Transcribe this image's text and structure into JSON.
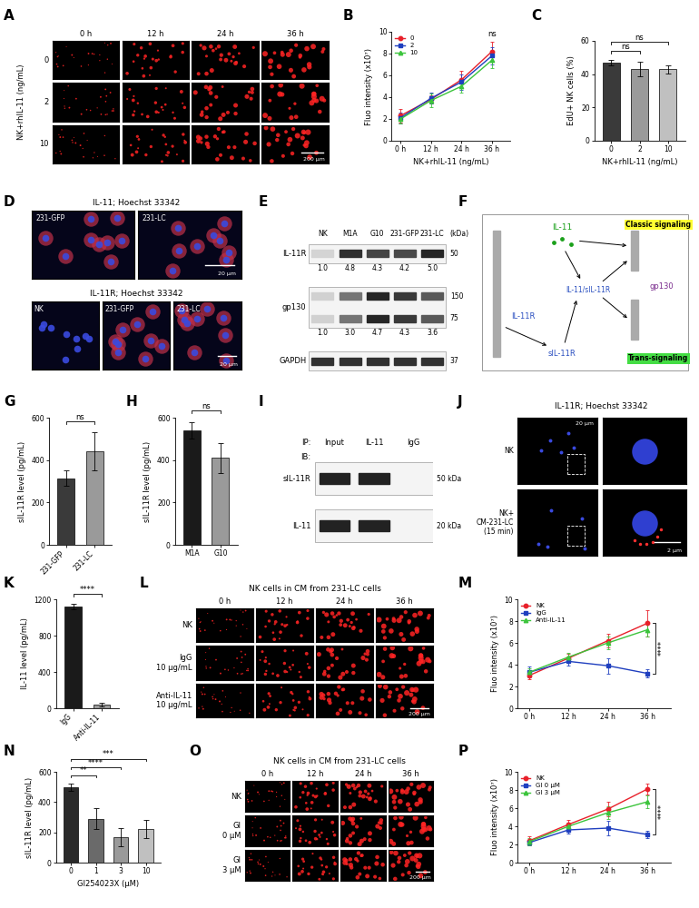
{
  "chart_data": [
    {
      "panel_label": "B",
      "type": "line",
      "categories": [
        "0 h",
        "12 h",
        "24 h",
        "36 h"
      ],
      "x_label": "NK+rhIL-11 (ng/mL)",
      "y_label": "Fluo intensity (x10⁷)",
      "ylim": [
        0,
        10
      ],
      "yticks": [
        0,
        2,
        4,
        6,
        8,
        10
      ],
      "legend": "upper left",
      "series": [
        {
          "name": "0",
          "color": "#e8202a",
          "marker": "circle",
          "values": [
            2.3,
            3.8,
            5.6,
            8.2
          ],
          "errors": [
            0.6,
            0.4,
            0.8,
            0.9
          ]
        },
        {
          "name": "2",
          "color": "#1f3fbf",
          "marker": "square",
          "values": [
            2.1,
            3.9,
            5.4,
            7.8
          ],
          "errors": [
            0.5,
            0.5,
            0.7,
            0.8
          ]
        },
        {
          "name": "10",
          "color": "#3cc43c",
          "marker": "triangle",
          "values": [
            2.0,
            3.7,
            5.0,
            7.4
          ],
          "errors": [
            0.4,
            0.6,
            0.6,
            0.7
          ]
        }
      ],
      "annotations": [
        {
          "text": "ns",
          "category": "36 h"
        }
      ]
    },
    {
      "panel_label": "C",
      "type": "bar",
      "categories": [
        "0",
        "2",
        "10"
      ],
      "x_label": "NK+rhIL-11 (ng/mL)",
      "y_label": "EdU+ NK cells (%)",
      "ylim": [
        0,
        60
      ],
      "yticks": [
        0,
        20,
        40,
        60
      ],
      "values": [
        47,
        43,
        43
      ],
      "errors": [
        1.5,
        4.5,
        2.5
      ],
      "colors": [
        "#3a3a3a",
        "#9a9a9a",
        "#c0c0c0"
      ],
      "comparisons": [
        {
          "from": "0",
          "to": "2",
          "text": "ns"
        },
        {
          "from": "0",
          "to": "10",
          "text": "ns"
        }
      ]
    },
    {
      "panel_label": "G",
      "type": "bar",
      "categories": [
        "231-GFP",
        "231-LC"
      ],
      "y_label": "sIL-11R level (pg/mL)",
      "ylim": [
        0,
        600
      ],
      "yticks": [
        0,
        200,
        400,
        600
      ],
      "values": [
        315,
        440
      ],
      "errors": [
        35,
        90
      ],
      "colors": [
        "#3a3a3a",
        "#9a9a9a"
      ],
      "comparisons": [
        {
          "from": "231-GFP",
          "to": "231-LC",
          "text": "ns"
        }
      ]
    },
    {
      "panel_label": "H",
      "type": "bar",
      "categories": [
        "M1A",
        "G10"
      ],
      "y_label": "sIL-11R level (pg/mL)",
      "ylim": [
        0,
        600
      ],
      "yticks": [
        0,
        200,
        400,
        600
      ],
      "values": [
        540,
        410
      ],
      "errors": [
        40,
        70
      ],
      "colors": [
        "#1a1a1a",
        "#9a9a9a"
      ],
      "comparisons": [
        {
          "from": "M1A",
          "to": "G10",
          "text": "ns"
        }
      ]
    },
    {
      "panel_label": "K",
      "type": "bar",
      "categories": [
        "IgG",
        "Anti-IL-11"
      ],
      "y_label": "IL-11 level (pg/mL)",
      "ylim": [
        0,
        1200
      ],
      "yticks": [
        0,
        400,
        800,
        1200
      ],
      "values": [
        1120,
        40
      ],
      "errors": [
        30,
        20
      ],
      "colors": [
        "#1a1a1a",
        "#9a9a9a"
      ],
      "comparisons": [
        {
          "from": "IgG",
          "to": "Anti-IL-11",
          "text": "****"
        }
      ]
    },
    {
      "panel_label": "M",
      "type": "line",
      "categories": [
        "0 h",
        "12 h",
        "24 h",
        "36 h"
      ],
      "y_label": "Fluo intensity (x10⁷)",
      "ylim": [
        0,
        10
      ],
      "yticks": [
        0,
        2,
        4,
        6,
        8,
        10
      ],
      "legend": "upper left",
      "series": [
        {
          "name": "NK",
          "color": "#e8202a",
          "marker": "circle",
          "values": [
            3.0,
            4.6,
            6.2,
            7.8
          ],
          "errors": [
            0.3,
            0.4,
            0.6,
            1.2
          ]
        },
        {
          "name": "IgG",
          "color": "#1f3fbf",
          "marker": "square",
          "values": [
            3.3,
            4.3,
            3.9,
            3.2
          ],
          "errors": [
            0.5,
            0.4,
            0.7,
            0.4
          ]
        },
        {
          "name": "Anti-IL-11",
          "color": "#3cc43c",
          "marker": "triangle",
          "values": [
            3.3,
            4.7,
            6.0,
            7.2
          ],
          "errors": [
            0.4,
            0.4,
            0.6,
            0.6
          ]
        }
      ],
      "annotations": [
        {
          "text": "****",
          "category": "36 h",
          "between": [
            "NK",
            "IgG"
          ]
        }
      ]
    },
    {
      "panel_label": "N",
      "type": "bar",
      "categories": [
        "0",
        "1",
        "3",
        "10"
      ],
      "x_label": "GI254023X (μM)",
      "y_label": "sIL-11R level (pg/mL)",
      "ylim": [
        0,
        600
      ],
      "yticks": [
        0,
        200,
        400,
        600
      ],
      "values": [
        500,
        290,
        170,
        225
      ],
      "errors": [
        25,
        70,
        60,
        60
      ],
      "colors": [
        "#2a2a2a",
        "#6a6a6a",
        "#9a9a9a",
        "#c0c0c0"
      ],
      "comparisons": [
        {
          "from": "0",
          "to": "1",
          "text": "**"
        },
        {
          "from": "0",
          "to": "3",
          "text": "****"
        },
        {
          "from": "0",
          "to": "10",
          "text": "***"
        }
      ]
    },
    {
      "panel_label": "P",
      "type": "line",
      "categories": [
        "0 h",
        "12 h",
        "24 h",
        "36 h"
      ],
      "y_label": "Fluo intensity (x10⁷)",
      "ylim": [
        0,
        10
      ],
      "yticks": [
        0,
        2,
        4,
        6,
        8,
        10
      ],
      "legend": "upper left",
      "series": [
        {
          "name": "NK",
          "color": "#e8202a",
          "marker": "circle",
          "values": [
            2.4,
            4.2,
            5.9,
            8.1
          ],
          "errors": [
            0.5,
            0.5,
            0.8,
            0.6
          ]
        },
        {
          "name": "GI 0 μM",
          "color": "#1f3fbf",
          "marker": "square",
          "values": [
            2.2,
            3.6,
            3.8,
            3.1
          ],
          "errors": [
            0.3,
            0.4,
            0.8,
            0.4
          ]
        },
        {
          "name": "GI 3 μM",
          "color": "#3cc43c",
          "marker": "triangle",
          "values": [
            2.3,
            4.0,
            5.5,
            6.7
          ],
          "errors": [
            0.4,
            0.4,
            0.7,
            0.7
          ]
        }
      ],
      "annotations": [
        {
          "text": "****",
          "category": "36 h",
          "between": [
            "NK",
            "GI 0 μM"
          ]
        }
      ]
    }
  ],
  "image_panels": [
    {
      "panel_label": "A",
      "type": "image_grid",
      "columns": [
        "0 h",
        "12 h",
        "24 h",
        "36 h"
      ],
      "rows": [
        "0",
        "2",
        "10"
      ],
      "side_label": "NK+rhIL-11 (ng/mL)",
      "scale_bar": "200 μm"
    },
    {
      "panel_label": "D",
      "type": "micrographs",
      "scale_bar": "20 μm",
      "groups": [
        {
          "stain": "IL-11; Hoechst 33342",
          "images": [
            "231-GFP",
            "231-LC"
          ]
        },
        {
          "stain": "IL-11R; Hoechst 33342",
          "images": [
            "NK",
            "231-GFP",
            "231-LC"
          ]
        }
      ]
    },
    {
      "panel_label": "E",
      "type": "western_blot",
      "kda_label": "(kDa)",
      "lanes": [
        "NK",
        "M1A",
        "G10",
        "231-GFP",
        "231-LC"
      ],
      "rows": [
        {
          "name": "IL-11R",
          "kda": [
            50
          ],
          "quant": [
            1.0,
            4.8,
            4.3,
            4.2,
            5.0
          ]
        },
        {
          "name": "gp130",
          "kda": [
            150,
            75
          ],
          "quant": [
            1.0,
            3.0,
            4.7,
            4.3,
            3.6
          ]
        },
        {
          "name": "GAPDH",
          "kda": [
            37
          ]
        }
      ]
    },
    {
      "panel_label": "F",
      "type": "diagram",
      "ligand": "IL-11",
      "receptor": "IL-11R",
      "soluble_receptor": "sIL-11R",
      "complex": "IL-11/sIL-11R",
      "coreceptor": "gp130",
      "classic": "Classic signaling",
      "trans": "Trans-signaling"
    },
    {
      "panel_label": "I",
      "type": "ip_blot",
      "ip_label": "IP:",
      "ib_label": "IB:",
      "lanes": [
        "Input",
        "IL-11",
        "IgG"
      ],
      "rows": [
        {
          "name": "sIL-11R",
          "size_label": "50 kDa"
        },
        {
          "name": "IL-11",
          "size_label": "20 kDa"
        }
      ],
      "bands": [
        [
          true,
          true,
          false
        ],
        [
          true,
          true,
          false
        ]
      ]
    },
    {
      "panel_label": "J",
      "type": "zoom_images",
      "stain": "IL-11R; Hoechst 33342",
      "rows": [
        "NK",
        "NK+\nCM-231-LC\n(15 min)"
      ],
      "scale_overview": "20 μm",
      "scale_zoom": "2 μm"
    },
    {
      "panel_label": "L",
      "type": "image_grid",
      "title": "NK cells in CM from 231-LC cells",
      "columns": [
        "0 h",
        "12 h",
        "24 h",
        "36 h"
      ],
      "rows": [
        "NK",
        "IgG\n10 μg/mL",
        "Anti-IL-11\n10 μg/mL"
      ],
      "scale_bar": "200 μm"
    },
    {
      "panel_label": "O",
      "type": "image_grid",
      "title": "NK cells in CM from 231-LC cells",
      "columns": [
        "0 h",
        "12 h",
        "24 h",
        "36 h"
      ],
      "rows": [
        "NK",
        "GI\n0 μM",
        "GI\n3 μM"
      ],
      "scale_bar": "200 μm"
    }
  ]
}
